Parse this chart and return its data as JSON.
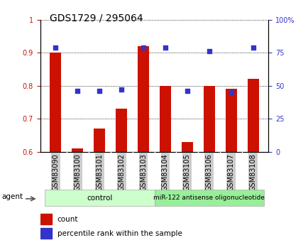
{
  "title": "GDS1729 / 295064",
  "categories": [
    "GSM83090",
    "GSM83100",
    "GSM83101",
    "GSM83102",
    "GSM83103",
    "GSM83104",
    "GSM83105",
    "GSM83106",
    "GSM83107",
    "GSM83108"
  ],
  "bar_bottom": 0.6,
  "bar_tops": [
    0.9,
    0.61,
    0.67,
    0.73,
    0.92,
    0.8,
    0.63,
    0.8,
    0.79,
    0.82
  ],
  "percentile_ranks": [
    79,
    46,
    46,
    47,
    79,
    79,
    46,
    76,
    45,
    79
  ],
  "ylim_left": [
    0.6,
    1.0
  ],
  "ylim_right": [
    0,
    100
  ],
  "yticks_left": [
    0.6,
    0.7,
    0.8,
    0.9,
    1.0
  ],
  "ytick_left_labels": [
    "0.6",
    "0.7",
    "0.8",
    "0.9",
    "1"
  ],
  "yticks_right": [
    0,
    25,
    50,
    75,
    100
  ],
  "ytick_right_labels": [
    "0",
    "25",
    "50",
    "75",
    "100%"
  ],
  "bar_color": "#CC1100",
  "dot_color": "#3333CC",
  "bar_width": 0.5,
  "control_count": 5,
  "control_label": "control",
  "treatment_label": "miR-122 antisense oligonucleotide",
  "agent_label": "agent",
  "legend_count_label": "count",
  "legend_pct_label": "percentile rank within the sample",
  "control_bg": "#ccffcc",
  "treatment_bg": "#99ee99",
  "ticklabel_bg": "#cccccc",
  "grid_color": "#000000",
  "title_fontsize": 10,
  "axis_fontsize": 7,
  "legend_fontsize": 7.5
}
